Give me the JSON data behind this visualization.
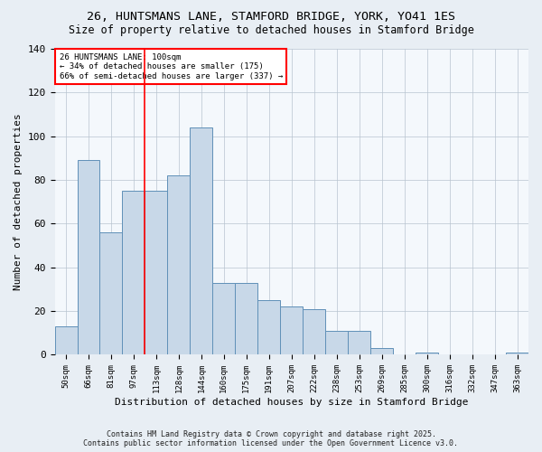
{
  "title1": "26, HUNTSMANS LANE, STAMFORD BRIDGE, YORK, YO41 1ES",
  "title2": "Size of property relative to detached houses in Stamford Bridge",
  "xlabel": "Distribution of detached houses by size in Stamford Bridge",
  "ylabel": "Number of detached properties",
  "categories": [
    "50sqm",
    "66sqm",
    "81sqm",
    "97sqm",
    "113sqm",
    "128sqm",
    "144sqm",
    "160sqm",
    "175sqm",
    "191sqm",
    "207sqm",
    "222sqm",
    "238sqm",
    "253sqm",
    "269sqm",
    "285sqm",
    "300sqm",
    "316sqm",
    "332sqm",
    "347sqm",
    "363sqm"
  ],
  "values": [
    13,
    89,
    56,
    75,
    75,
    82,
    104,
    33,
    33,
    25,
    22,
    21,
    11,
    11,
    3,
    0,
    1,
    0,
    0,
    0,
    1
  ],
  "bar_color": "#c8d8e8",
  "bar_edge_color": "#6090b8",
  "vline_x_idx": 3.5,
  "vline_color": "red",
  "ylim": [
    0,
    140
  ],
  "yticks": [
    0,
    20,
    40,
    60,
    80,
    100,
    120,
    140
  ],
  "annotation_text": "26 HUNTSMANS LANE: 100sqm\n← 34% of detached houses are smaller (175)\n66% of semi-detached houses are larger (337) →",
  "footer1": "Contains HM Land Registry data © Crown copyright and database right 2025.",
  "footer2": "Contains public sector information licensed under the Open Government Licence v3.0.",
  "bg_color": "#e8eef4",
  "plot_bg_color": "#f4f8fc"
}
